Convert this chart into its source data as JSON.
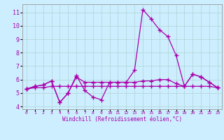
{
  "xlabel": "Windchill (Refroidissement éolien,°C)",
  "ylabel": "",
  "bg_color": "#cceeff",
  "grid_color": "#b0d4d4",
  "line_color": "#aa00aa",
  "x_hours": [
    0,
    1,
    2,
    3,
    4,
    5,
    6,
    7,
    8,
    9,
    10,
    11,
    12,
    13,
    14,
    15,
    16,
    17,
    18,
    19,
    20,
    21,
    22,
    23
  ],
  "series1": [
    5.3,
    5.5,
    5.6,
    5.9,
    4.3,
    5.0,
    6.3,
    5.2,
    4.7,
    4.5,
    5.8,
    5.8,
    5.8,
    6.7,
    11.2,
    10.5,
    9.7,
    9.2,
    7.8,
    5.5,
    6.4,
    6.2,
    5.8,
    5.4
  ],
  "series2": [
    5.3,
    5.5,
    5.6,
    5.9,
    4.3,
    5.0,
    6.2,
    5.8,
    5.8,
    5.8,
    5.8,
    5.8,
    5.8,
    5.8,
    5.9,
    5.9,
    6.0,
    6.0,
    5.7,
    5.5,
    6.4,
    6.2,
    5.8,
    5.4
  ],
  "series3": [
    5.3,
    5.4,
    5.4,
    5.5,
    5.5,
    5.5,
    5.5,
    5.5,
    5.5,
    5.5,
    5.5,
    5.5,
    5.5,
    5.5,
    5.5,
    5.5,
    5.5,
    5.5,
    5.5,
    5.5,
    5.5,
    5.5,
    5.5,
    5.4
  ],
  "ylim": [
    3.8,
    11.6
  ],
  "yticks": [
    4,
    5,
    6,
    7,
    8,
    9,
    10,
    11
  ],
  "xtick_labels": [
    "0",
    "1",
    "2",
    "3",
    "4",
    "5",
    "6",
    "7",
    "8",
    "9",
    "10",
    "11",
    "12",
    "13",
    "14",
    "15",
    "16",
    "17",
    "18",
    "19",
    "20",
    "21",
    "22",
    "23"
  ]
}
